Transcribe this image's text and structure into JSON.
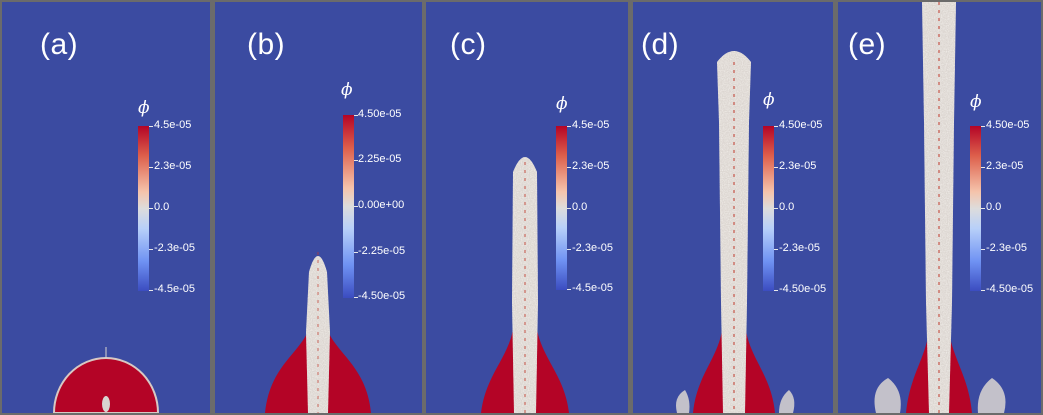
{
  "colors": {
    "background": "#3b4ba1",
    "separator": "#6b6b6b",
    "fluid": "#b40426",
    "mixing": "#d8d4d0",
    "colorbar_top": "#b40426",
    "colorbar_mid": "#dddcdc",
    "colorbar_bottom": "#3b4cc0"
  },
  "panels": [
    {
      "label": "(a)",
      "colorbar_title": "ϕ",
      "ticks": [
        "4.5e-05",
        "2.3e-05",
        "0.0",
        "-2.3e-05",
        "-4.5e-05"
      ],
      "stage": 0.0
    },
    {
      "label": "(b)",
      "colorbar_title": "ϕ",
      "ticks": [
        "4.50e-05",
        "2.25e-05",
        "0.00e+00",
        "-2.25e-05",
        "-4.50e-05"
      ],
      "stage": 0.4
    },
    {
      "label": "(c)",
      "colorbar_title": "ϕ",
      "ticks": [
        "4.5e-05",
        "2.3e-05",
        "0.0",
        "-2.3e-05",
        "-4.5e-05"
      ],
      "stage": 0.65
    },
    {
      "label": "(d)",
      "colorbar_title": "ϕ",
      "ticks": [
        "4.50e-05",
        "2.3e-05",
        "0.0",
        "-2.3e-05",
        "-4.50e-05"
      ],
      "stage": 0.85
    },
    {
      "label": "(e)",
      "colorbar_title": "ϕ",
      "ticks": [
        "4.50e-05",
        "2.3e-05",
        "0.0",
        "-2.3e-05",
        "-4.50e-05"
      ],
      "stage": 1.0
    }
  ]
}
